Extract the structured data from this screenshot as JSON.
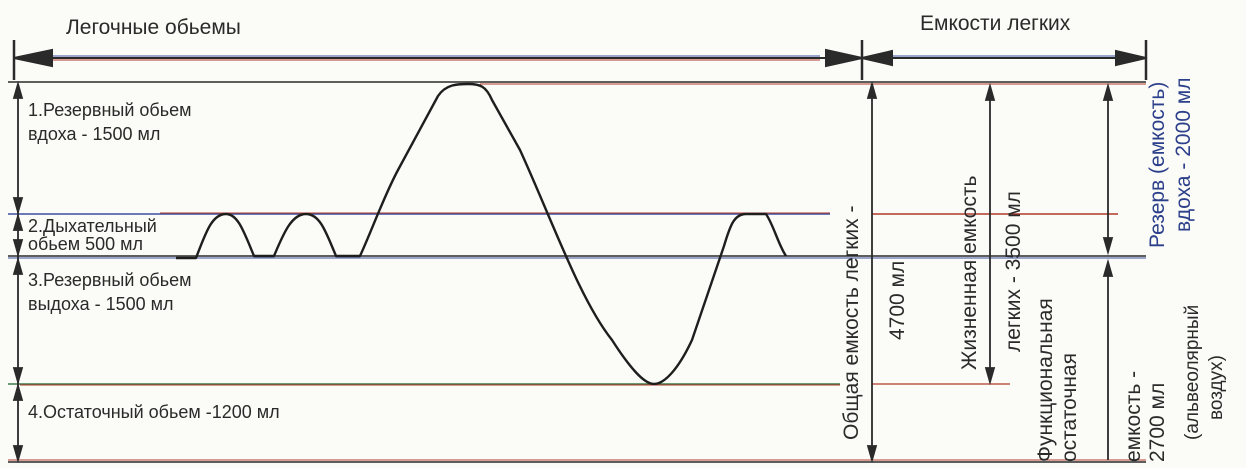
{
  "headers": {
    "volumes": "Легочные обьемы",
    "capacities": "Емкости легких"
  },
  "volumes": [
    {
      "line1": "1.Резервный обьем",
      "line2": "вдоха - 1500 мл"
    },
    {
      "line1": "2.Дыхательный",
      "line2": "обьем 500 мл"
    },
    {
      "line1": "3.Резервный обьем",
      "line2": "выдоха - 1500 мл"
    },
    {
      "line1": "4.Остаточный обьем -1200 мл",
      "line2": ""
    }
  ],
  "capacities": {
    "total": {
      "line1": "Общая емкость легких -",
      "line2": "4700 мл"
    },
    "vital": {
      "line1": "Жизненная емкость",
      "line2": "легких   - 3500 мл"
    },
    "frc": {
      "line1": "Функциональная",
      "line2": "остаточная"
    },
    "frc_right": {
      "line1": "емкость -",
      "line2": "2700 мл",
      "line3": "(альвеолярный",
      "line4": "воздух)"
    },
    "inspiratory": {
      "line1": "Резерв (емкость)",
      "line2": "вдоха - 2000 мл"
    }
  },
  "colors": {
    "line_dark": "#2a2a2a",
    "line_red": "#b23a2a",
    "line_blue": "#3b4fa0",
    "line_green": "#3c7a4a"
  }
}
